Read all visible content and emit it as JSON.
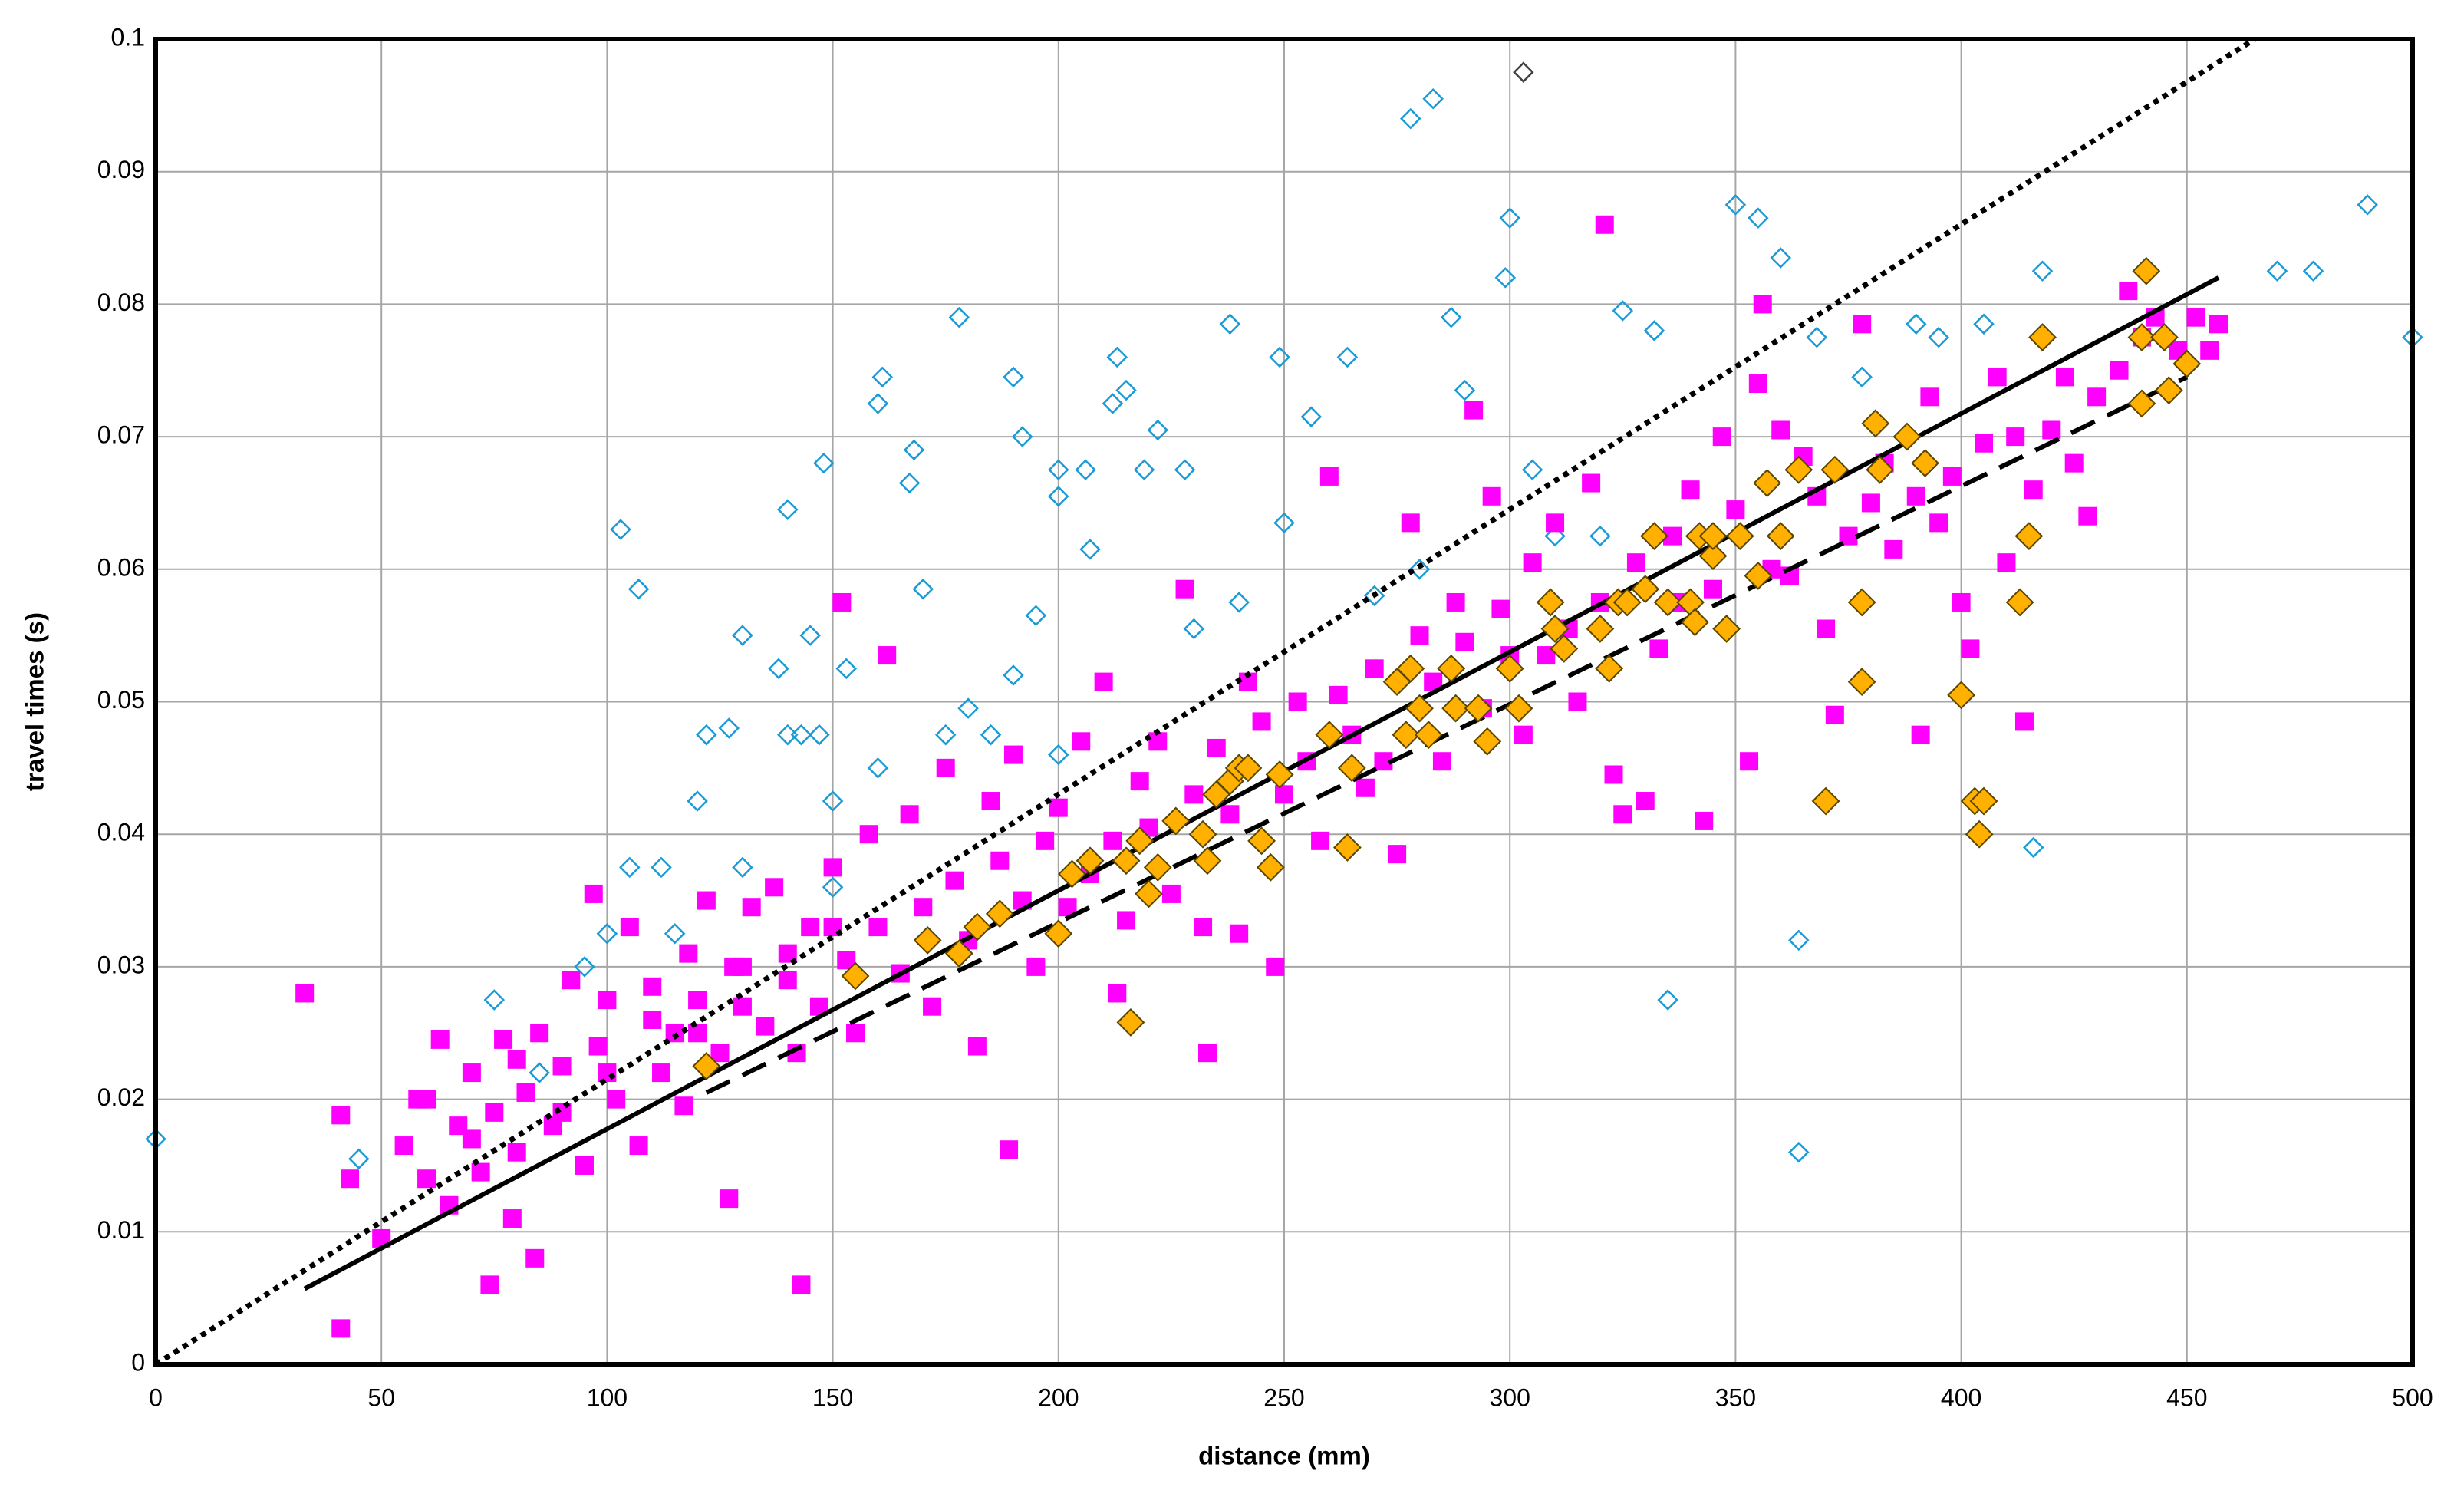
{
  "chart_data": {
    "type": "scatter",
    "x_label": "distance (mm)",
    "y_label": "travel times (s)",
    "xlim": [
      0,
      500
    ],
    "xticks": [
      0,
      50,
      100,
      150,
      200,
      250,
      300,
      350,
      400,
      450,
      500
    ],
    "ylim": [
      0,
      0.1
    ],
    "yticks": [
      0,
      0.01,
      0.02,
      0.03,
      0.04,
      0.05,
      0.06,
      0.07,
      0.08,
      0.09,
      0.1
    ],
    "grid": true,
    "series": [
      {
        "color": "#1a9bd7",
        "marker": "diamond",
        "filled": false,
        "x": [
          0,
          45,
          103,
          107,
          100,
          105,
          112,
          115,
          120,
          122,
          127,
          130,
          138,
          140,
          140,
          143,
          145,
          147,
          148,
          150,
          153,
          160,
          161,
          167,
          168,
          170,
          178,
          180,
          190,
          192,
          195,
          200,
          200,
          206,
          207,
          212,
          213,
          215,
          219,
          222,
          228,
          238,
          249,
          250,
          256,
          264,
          278,
          283,
          287,
          290,
          300,
          299,
          305,
          310,
          320,
          325,
          332,
          335,
          350,
          355,
          360,
          364,
          364,
          368,
          378,
          390,
          395,
          405,
          416,
          418,
          470,
          478,
          490,
          500,
          160,
          175,
          185,
          190,
          200,
          230,
          240,
          270,
          280,
          75,
          85,
          95,
          130,
          150
        ],
        "values": [
          0.017,
          0.0155,
          0.063,
          0.0585,
          0.0325,
          0.0375,
          0.0375,
          0.0325,
          0.0425,
          0.0475,
          0.048,
          0.055,
          0.0525,
          0.0645,
          0.0475,
          0.0475,
          0.055,
          0.0475,
          0.068,
          0.0425,
          0.0525,
          0.0725,
          0.0745,
          0.0665,
          0.069,
          0.0585,
          0.079,
          0.0495,
          0.0745,
          0.07,
          0.0565,
          0.0655,
          0.0675,
          0.0675,
          0.0615,
          0.0725,
          0.076,
          0.0735,
          0.0675,
          0.0705,
          0.0675,
          0.0785,
          0.076,
          0.0635,
          0.0715,
          0.076,
          0.094,
          0.0955,
          0.079,
          0.0735,
          0.0865,
          0.082,
          0.0675,
          0.0625,
          0.0625,
          0.0795,
          0.078,
          0.0275,
          0.0875,
          0.0865,
          0.0835,
          0.032,
          0.016,
          0.0775,
          0.0745,
          0.0785,
          0.0775,
          0.0785,
          0.039,
          0.0825,
          0.0825,
          0.0825,
          0.0875,
          0.0775,
          0.045,
          0.0475,
          0.0475,
          0.052,
          0.046,
          0.0555,
          0.0575,
          0.058,
          0.06,
          0.0275,
          0.022,
          0.03,
          0.0375,
          0.036
        ]
      },
      {
        "color": "#404040",
        "marker": "diamond",
        "filled": false,
        "x": [
          303
        ],
        "values": [
          0.0975
        ]
      },
      {
        "color": "#ff00ff",
        "marker": "square",
        "filled": true,
        "x": [
          33,
          41,
          41,
          43,
          50,
          55,
          58,
          60,
          63,
          65,
          67,
          70,
          72,
          74,
          75,
          77,
          79,
          80,
          82,
          84,
          85,
          88,
          90,
          92,
          95,
          97,
          98,
          100,
          102,
          105,
          107,
          110,
          112,
          115,
          117,
          118,
          120,
          122,
          125,
          127,
          128,
          130,
          132,
          135,
          137,
          140,
          142,
          143,
          145,
          147,
          150,
          152,
          153,
          155,
          158,
          160,
          162,
          165,
          167,
          170,
          172,
          175,
          177,
          180,
          182,
          185,
          187,
          189,
          190,
          192,
          195,
          197,
          200,
          202,
          205,
          207,
          210,
          212,
          213,
          215,
          218,
          220,
          222,
          225,
          228,
          230,
          232,
          233,
          235,
          238,
          240,
          242,
          245,
          248,
          250,
          253,
          255,
          258,
          260,
          262,
          265,
          268,
          270,
          272,
          275,
          278,
          280,
          283,
          285,
          288,
          290,
          292,
          294,
          296,
          298,
          300,
          303,
          305,
          308,
          310,
          313,
          315,
          318,
          320,
          321,
          323,
          325,
          328,
          330,
          333,
          336,
          338,
          340,
          343,
          345,
          347,
          350,
          353,
          355,
          356,
          358,
          360,
          362,
          365,
          368,
          370,
          372,
          375,
          378,
          380,
          383,
          385,
          390,
          391,
          393,
          395,
          398,
          400,
          402,
          405,
          408,
          410,
          412,
          414,
          416,
          420,
          423,
          425,
          428,
          430,
          435,
          437,
          440,
          443,
          448,
          452,
          457,
          455,
          60,
          70,
          80,
          90,
          100,
          110,
          120,
          130,
          140,
          150
        ],
        "values": [
          0.028,
          0.0027,
          0.0188,
          0.014,
          0.0095,
          0.0165,
          0.02,
          0.014,
          0.0245,
          0.012,
          0.018,
          0.022,
          0.0145,
          0.006,
          0.019,
          0.0245,
          0.011,
          0.016,
          0.0205,
          0.008,
          0.025,
          0.018,
          0.0225,
          0.029,
          0.015,
          0.0355,
          0.024,
          0.0275,
          0.02,
          0.033,
          0.0165,
          0.0285,
          0.022,
          0.025,
          0.0195,
          0.031,
          0.0275,
          0.035,
          0.0235,
          0.0125,
          0.03,
          0.027,
          0.0345,
          0.0255,
          0.036,
          0.029,
          0.0235,
          0.006,
          0.033,
          0.027,
          0.0375,
          0.0575,
          0.0305,
          0.025,
          0.04,
          0.033,
          0.0535,
          0.0295,
          0.0415,
          0.0345,
          0.027,
          0.045,
          0.0365,
          0.032,
          0.024,
          0.0425,
          0.038,
          0.0162,
          0.046,
          0.035,
          0.03,
          0.0395,
          0.042,
          0.0345,
          0.047,
          0.037,
          0.0515,
          0.0395,
          0.028,
          0.0335,
          0.044,
          0.0405,
          0.047,
          0.0355,
          0.0585,
          0.043,
          0.033,
          0.0235,
          0.0465,
          0.0415,
          0.0325,
          0.0515,
          0.0485,
          0.03,
          0.043,
          0.05,
          0.0455,
          0.0395,
          0.067,
          0.0505,
          0.0475,
          0.0435,
          0.0525,
          0.0455,
          0.0385,
          0.0635,
          0.055,
          0.0515,
          0.0455,
          0.0575,
          0.0545,
          0.072,
          0.0495,
          0.0655,
          0.057,
          0.0535,
          0.0475,
          0.0605,
          0.0535,
          0.0635,
          0.0555,
          0.05,
          0.0665,
          0.0575,
          0.086,
          0.0445,
          0.0415,
          0.0605,
          0.0425,
          0.054,
          0.0625,
          0.0575,
          0.066,
          0.041,
          0.0585,
          0.07,
          0.0645,
          0.0455,
          0.074,
          0.08,
          0.06,
          0.0705,
          0.0595,
          0.0685,
          0.0655,
          0.0555,
          0.049,
          0.0625,
          0.0785,
          0.065,
          0.068,
          0.0615,
          0.0655,
          0.0475,
          0.073,
          0.0635,
          0.067,
          0.0575,
          0.054,
          0.0695,
          0.0745,
          0.0605,
          0.07,
          0.0485,
          0.066,
          0.0705,
          0.0745,
          0.068,
          0.064,
          0.073,
          0.075,
          0.081,
          0.0775,
          0.079,
          0.0765,
          0.079,
          0.0785,
          0.0765,
          0.02,
          0.017,
          0.023,
          0.019,
          0.022,
          0.026,
          0.025,
          0.03,
          0.031,
          0.033
        ]
      },
      {
        "color": "#ffb000",
        "edge_color": "#5a4600",
        "marker": "diamond",
        "filled": true,
        "x": [
          122,
          155,
          171,
          178,
          182,
          187,
          200,
          203,
          207,
          215,
          216,
          218,
          220,
          222,
          226,
          232,
          233,
          235,
          238,
          240,
          242,
          245,
          247,
          249,
          260,
          264,
          265,
          275,
          277,
          278,
          280,
          282,
          287,
          288,
          293,
          295,
          300,
          302,
          309,
          310,
          312,
          320,
          322,
          324,
          326,
          330,
          332,
          335,
          340,
          341,
          342,
          345,
          345,
          348,
          351,
          355,
          357,
          360,
          364,
          370,
          372,
          378,
          378,
          381,
          382,
          388,
          392,
          400,
          403,
          404,
          405,
          413,
          415,
          418,
          440,
          441,
          445,
          446,
          450,
          440
        ],
        "values": [
          0.0225,
          0.0293,
          0.032,
          0.031,
          0.033,
          0.034,
          0.0325,
          0.037,
          0.038,
          0.038,
          0.0258,
          0.0395,
          0.0355,
          0.0375,
          0.041,
          0.04,
          0.038,
          0.043,
          0.044,
          0.045,
          0.045,
          0.0395,
          0.0375,
          0.0445,
          0.0475,
          0.039,
          0.045,
          0.0515,
          0.0475,
          0.0525,
          0.0495,
          0.0475,
          0.0525,
          0.0495,
          0.0495,
          0.047,
          0.0525,
          0.0495,
          0.0575,
          0.0555,
          0.054,
          0.0555,
          0.0525,
          0.0575,
          0.0575,
          0.0585,
          0.0625,
          0.0575,
          0.0575,
          0.056,
          0.0625,
          0.061,
          0.0625,
          0.0555,
          0.0625,
          0.0595,
          0.0665,
          0.0625,
          0.0675,
          0.0425,
          0.0675,
          0.0575,
          0.0515,
          0.071,
          0.0675,
          0.07,
          0.068,
          0.0505,
          0.0425,
          0.04,
          0.0425,
          0.0575,
          0.0625,
          0.0775,
          0.0775,
          0.0825,
          0.0775,
          0.0735,
          0.0755,
          0.0725
        ]
      }
    ],
    "lines": [
      {
        "color": "#000000",
        "style": "dotted",
        "x": [
          0,
          465
        ],
        "values": [
          0,
          0.1
        ]
      },
      {
        "color": "#000000",
        "style": "solid",
        "x": [
          33,
          457
        ],
        "values": [
          0.0057,
          0.082
        ]
      },
      {
        "color": "#000000",
        "style": "dashed",
        "x": [
          122,
          450
        ],
        "values": [
          0.0205,
          0.0745
        ]
      }
    ]
  }
}
